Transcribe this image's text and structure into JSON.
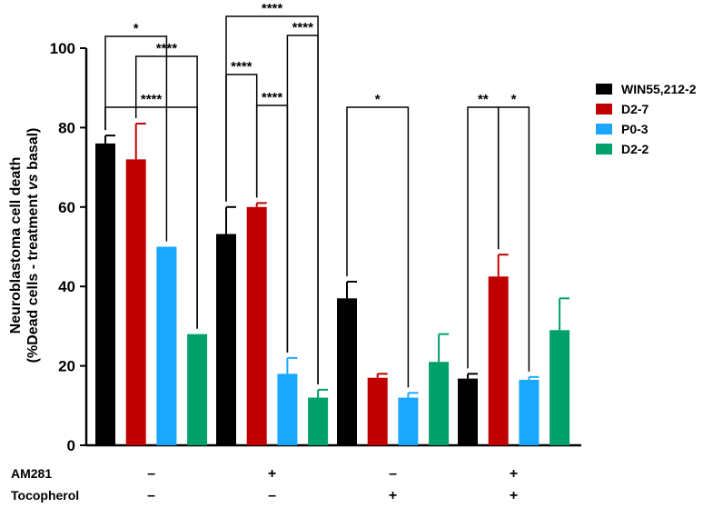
{
  "chart_data": {
    "type": "bar",
    "ylabel_line1": "Neuroblastoma cell death",
    "ylabel_line2_prefix": "(%Dead cells - treatment ",
    "ylabel_line2_italic": "vs",
    "ylabel_line2_suffix": " basal)",
    "ylim": [
      0,
      100
    ],
    "yticks": [
      "0",
      "20",
      "40",
      "60",
      "80",
      "100"
    ],
    "ytick_values": [
      0,
      20,
      40,
      60,
      80,
      100
    ],
    "groups": 4,
    "series": [
      {
        "name": "WIN55,212-2",
        "color": "#000000",
        "values": [
          76,
          53.2,
          37,
          16.8
        ],
        "errors": [
          2,
          6.8,
          4.2,
          1.2
        ]
      },
      {
        "name": "D2-7",
        "color": "#c00000",
        "values": [
          72,
          60,
          17,
          42.5
        ],
        "errors": [
          9,
          1,
          1,
          5.5
        ]
      },
      {
        "name": "P0-3",
        "color": "#1aa7ff",
        "values": [
          50,
          18,
          12,
          16.5
        ],
        "errors": [
          0,
          4,
          1.2,
          0.7
        ]
      },
      {
        "name": "D2-2",
        "color": "#00a06a",
        "values": [
          28,
          12,
          21,
          29
        ],
        "errors": [
          0,
          2,
          7,
          8
        ]
      }
    ],
    "conditions": [
      {
        "label": "AM281",
        "values": [
          "–",
          "+",
          "–",
          "+"
        ]
      },
      {
        "label": "Tocopherol",
        "values": [
          "–",
          "–",
          "+",
          "+"
        ]
      }
    ],
    "significance": [
      {
        "group": 0,
        "from": 0,
        "to": 3,
        "label": "****"
      },
      {
        "group": 0,
        "from": 1,
        "to": 3,
        "label": "****"
      },
      {
        "group": 0,
        "from": 0,
        "to": 2,
        "label": "*"
      },
      {
        "group": 1,
        "from": 0,
        "to": 3,
        "label": "****"
      },
      {
        "group": 1,
        "from": 2,
        "to": 3,
        "label": "****"
      },
      {
        "group": 1,
        "from": 0,
        "to": 1,
        "label": "****"
      },
      {
        "group": 1,
        "from": 1,
        "to": 2,
        "label": "****"
      },
      {
        "group": 2,
        "from": 0,
        "to": 2,
        "label": "*"
      },
      {
        "group": 3,
        "from": 0,
        "to": 1,
        "label": "**"
      },
      {
        "group": 3,
        "from": 1,
        "to": 2,
        "label": "*"
      }
    ]
  }
}
